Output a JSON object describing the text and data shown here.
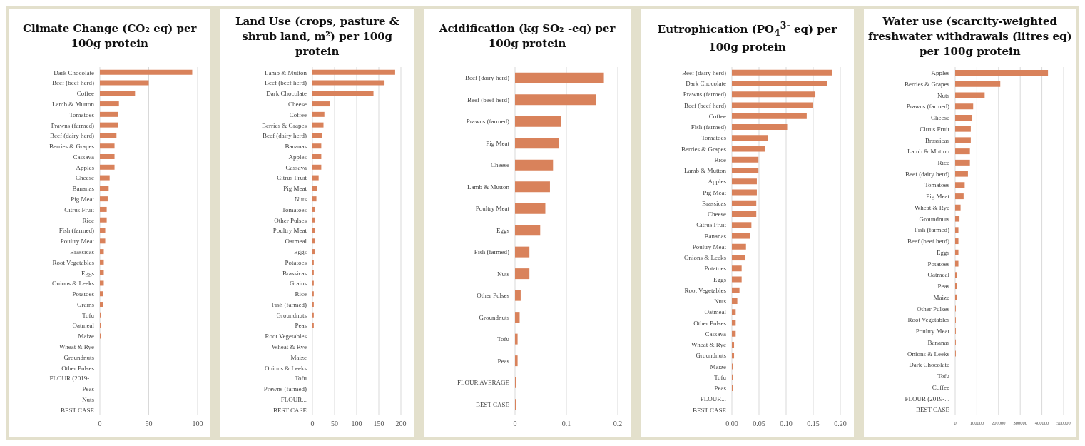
{
  "chart_data": [
    {
      "type": "bar",
      "orientation": "horizontal",
      "title": "Climate Change (CO₂ eq) per 100g protein",
      "grid": "x",
      "color": "#d9825b",
      "categories": [
        "Dark Chocolate",
        "Beef (beef herd)",
        "Coffee",
        "Lamb & Mutton",
        "Tomatoes",
        "Prawns (farmed)",
        "Beef (dairy herd)",
        "Berries & Grapes",
        "Cassava",
        "Apples",
        "Cheese",
        "Bananas",
        "Pig Meat",
        "Citrus Fruit",
        "Rice",
        "Fish (farmed)",
        "Poultry Meat",
        "Brassicas",
        "Root Vegetables",
        "Eggs",
        "Onions & Leeks",
        "Potatoes",
        "Grains",
        "Tofu",
        "Oatmeal",
        "Maize",
        "Wheat & Rye",
        "Groundnuts",
        "Other Pulses",
        "FLOUR (2019-...",
        "Peas",
        "Nuts",
        "BEST CASE"
      ],
      "values": [
        94.5,
        50,
        36,
        19.5,
        18.5,
        18.5,
        17,
        15,
        15,
        15,
        10,
        9,
        8,
        7,
        7,
        5.5,
        5.5,
        4,
        4,
        4,
        4,
        3,
        3,
        1.3,
        1.3,
        1.3,
        0,
        0,
        0,
        0,
        0,
        0,
        0
      ],
      "xlim": [
        0,
        100
      ],
      "xticks": [
        0,
        50,
        100
      ]
    },
    {
      "type": "bar",
      "orientation": "horizontal",
      "title": "Land Use (crops, pasture & shrub land, m²) per 100g protein",
      "grid": "x",
      "color": "#d9825b",
      "categories": [
        "Lamb & Mutton",
        "Beef (beef herd)",
        "Dark Chocolate",
        "Cheese",
        "Coffee",
        "Berries & Grapes",
        "Beef (dairy herd)",
        "Bananas",
        "Apples",
        "Cassava",
        "Citrus Fruit",
        "Pig Meat",
        "Nuts",
        "Tomatoes",
        "Other Pulses",
        "Poultry Meat",
        "Oatmeal",
        "Eggs",
        "Potatoes",
        "Brassicas",
        "Grains",
        "Rice",
        "Fish (farmed)",
        "Groundnuts",
        "Peas",
        "Root Vegetables",
        "Wheat & Rye",
        "Maize",
        "Onions & Leeks",
        "Tofu",
        "Prawns (farmed)",
        "FLOUR...",
        "BEST CASE"
      ],
      "values": [
        187,
        163,
        138,
        39,
        27,
        25,
        22,
        20,
        20,
        20,
        14,
        11,
        9,
        5,
        5,
        5,
        5,
        5,
        3,
        3,
        3,
        3,
        3,
        3,
        3,
        0,
        0,
        0,
        0,
        0,
        0,
        0,
        0
      ],
      "xlim": [
        0,
        200
      ],
      "xticks": [
        0,
        50,
        100,
        150,
        200
      ]
    },
    {
      "type": "bar",
      "orientation": "horizontal",
      "title": "Acidification (kg SO₂ -eq) per 100g protein",
      "grid": "x",
      "color": "#d9825b",
      "categories": [
        "Beef (dairy herd)",
        "Beef (beef herd)",
        "Prawns (farmed)",
        "Pig Meat",
        "Cheese",
        "Lamb & Mutton",
        "Poultry Meat",
        "Eggs",
        "Fish (farmed)",
        "Nuts",
        "Other Pulses",
        "Groundnuts",
        "Tofu",
        "Peas",
        "FLOUR AVERAGE",
        "BEST CASE"
      ],
      "values": [
        0.173,
        0.158,
        0.089,
        0.086,
        0.074,
        0.068,
        0.059,
        0.049,
        0.028,
        0.028,
        0.011,
        0.009,
        0.005,
        0.005,
        0.002,
        0.002
      ],
      "xlim": [
        0,
        0.2
      ],
      "xticks": [
        0,
        0.1,
        0.2
      ]
    },
    {
      "type": "bar",
      "orientation": "horizontal",
      "title": "Eutrophication (PO$_{4}$$^{3-}$ eq) per 100g protein",
      "grid": "x",
      "color": "#d9825b",
      "categories": [
        "Beef (dairy herd)",
        "Dark Chocolate",
        "Prawns (farmed)",
        "Beef (beef herd)",
        "Coffee",
        "Fish (farmed)",
        "Tomatoes",
        "Berries & Grapes",
        "Rice",
        "Lamb & Mutton",
        "Apples",
        "Pig Meat",
        "Brassicas",
        "Cheese",
        "Citrus Fruit",
        "Bananas",
        "Poultry Meat",
        "Onions & Leeks",
        "Potatoes",
        "Eggs",
        "Root Vegetables",
        "Nuts",
        "Oatmeal",
        "Other Pulses",
        "Cassava",
        "Wheat & Rye",
        "Groundnuts",
        "Maize",
        "Tofu",
        "Peas",
        "FLOUR...",
        "BEST CASE"
      ],
      "values": [
        0.185,
        0.175,
        0.154,
        0.15,
        0.138,
        0.102,
        0.067,
        0.061,
        0.049,
        0.049,
        0.046,
        0.046,
        0.045,
        0.045,
        0.036,
        0.034,
        0.026,
        0.025,
        0.018,
        0.018,
        0.014,
        0.01,
        0.007,
        0.007,
        0.007,
        0.004,
        0.004,
        0.002,
        0.002,
        0.002,
        0,
        0
      ],
      "xlim": [
        0,
        0.2
      ],
      "xticks": [
        {
          "value": 0,
          "label": "0.00"
        },
        {
          "value": 0.05,
          "label": "0.05"
        },
        {
          "value": 0.1,
          "label": "0.10"
        },
        {
          "value": 0.15,
          "label": "0.15"
        },
        {
          "value": 0.2,
          "label": "0.20"
        }
      ]
    },
    {
      "type": "bar",
      "orientation": "horizontal",
      "title": "Water use (scarcity-weighted freshwater withdrawals (litres eq) per 100g protein",
      "grid": "x",
      "color": "#d9825b",
      "categories": [
        "Apples",
        "Berries & Grapes",
        "Nuts",
        "Prawns (farmed)",
        "Cheese",
        "Citrus Fruit",
        "Brassicas",
        "Lamb & Mutton",
        "Rice",
        "Beef (dairy herd)",
        "Tomatoes",
        "Pig Meat",
        "Wheat & Rye",
        "Groundnuts",
        "Fish (farmed)",
        "Beef (beef herd)",
        "Eggs",
        "Potatoes",
        "Oatmeal",
        "Peas",
        "Maize",
        "Other Pulses",
        "Root Vegetables",
        "Poultry Meat",
        "Bananas",
        "Onions & Leeks",
        "Dark Chocolate",
        "Tofu",
        "Coffee",
        "FLOUR (2019-...",
        "BEST CASE"
      ],
      "values": [
        428000,
        208000,
        136000,
        83000,
        79000,
        72000,
        72000,
        68000,
        68000,
        59000,
        44000,
        39000,
        25000,
        20000,
        15000,
        15000,
        15000,
        15000,
        8000,
        8000,
        8000,
        3000,
        3000,
        3000,
        3000,
        3000,
        0,
        0,
        0,
        0,
        0
      ],
      "xlim": [
        0,
        500000
      ],
      "xticks": [
        0,
        100000,
        200000,
        300000,
        400000,
        500000
      ]
    }
  ]
}
